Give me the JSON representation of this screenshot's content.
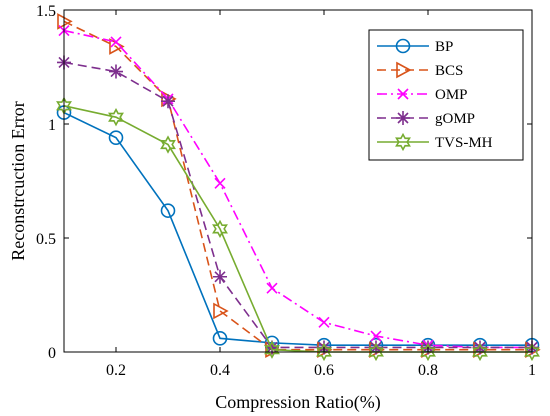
{
  "chart_data": {
    "type": "line",
    "title": "",
    "xlabel": "Compression Ratio(%)",
    "ylabel": "Reconstrcuction Error",
    "xlim": [
      0.1,
      1
    ],
    "ylim": [
      0,
      1.5
    ],
    "x": [
      0.1,
      0.2,
      0.3,
      0.4,
      0.5,
      0.6,
      0.7,
      0.8,
      0.9,
      1.0
    ],
    "xticks": [
      0.2,
      0.4,
      0.6,
      0.8,
      1
    ],
    "xtick_labels": [
      "0.2",
      "0.4",
      "0.6",
      "0.8",
      "1"
    ],
    "yticks": [
      0,
      0.5,
      1,
      1.5
    ],
    "ytick_labels": [
      "0",
      "0.5",
      "1",
      "1.5"
    ],
    "grid": false,
    "legend_position": "top-right",
    "series": [
      {
        "name": "BP",
        "color": "#0072BD",
        "dash": "solid",
        "marker": "circle",
        "values": [
          1.05,
          0.94,
          0.62,
          0.06,
          0.04,
          0.03,
          0.03,
          0.03,
          0.03,
          0.03
        ]
      },
      {
        "name": "BCS",
        "color": "#D95319",
        "dash": "dashed",
        "marker": "triangle-right",
        "values": [
          1.45,
          1.34,
          1.11,
          0.18,
          0.01,
          0.01,
          0.01,
          0.01,
          0.01,
          0.01
        ]
      },
      {
        "name": "OMP",
        "color": "#FF00FF",
        "dash": "dashdot",
        "marker": "x",
        "values": [
          1.41,
          1.36,
          1.11,
          0.74,
          0.28,
          0.13,
          0.07,
          0.03,
          0.02,
          0.02
        ]
      },
      {
        "name": "gOMP",
        "color": "#7E2F8E",
        "dash": "dashed",
        "marker": "asterisk",
        "values": [
          1.27,
          1.23,
          1.1,
          0.33,
          0.02,
          0.02,
          0.02,
          0.02,
          0.02,
          0.02
        ]
      },
      {
        "name": "TVS-MH",
        "color": "#77AC30",
        "dash": "solid",
        "marker": "hexagram",
        "values": [
          1.08,
          1.03,
          0.91,
          0.54,
          0.01,
          0.0,
          0.0,
          0.0,
          0.0,
          0.0
        ]
      }
    ]
  }
}
